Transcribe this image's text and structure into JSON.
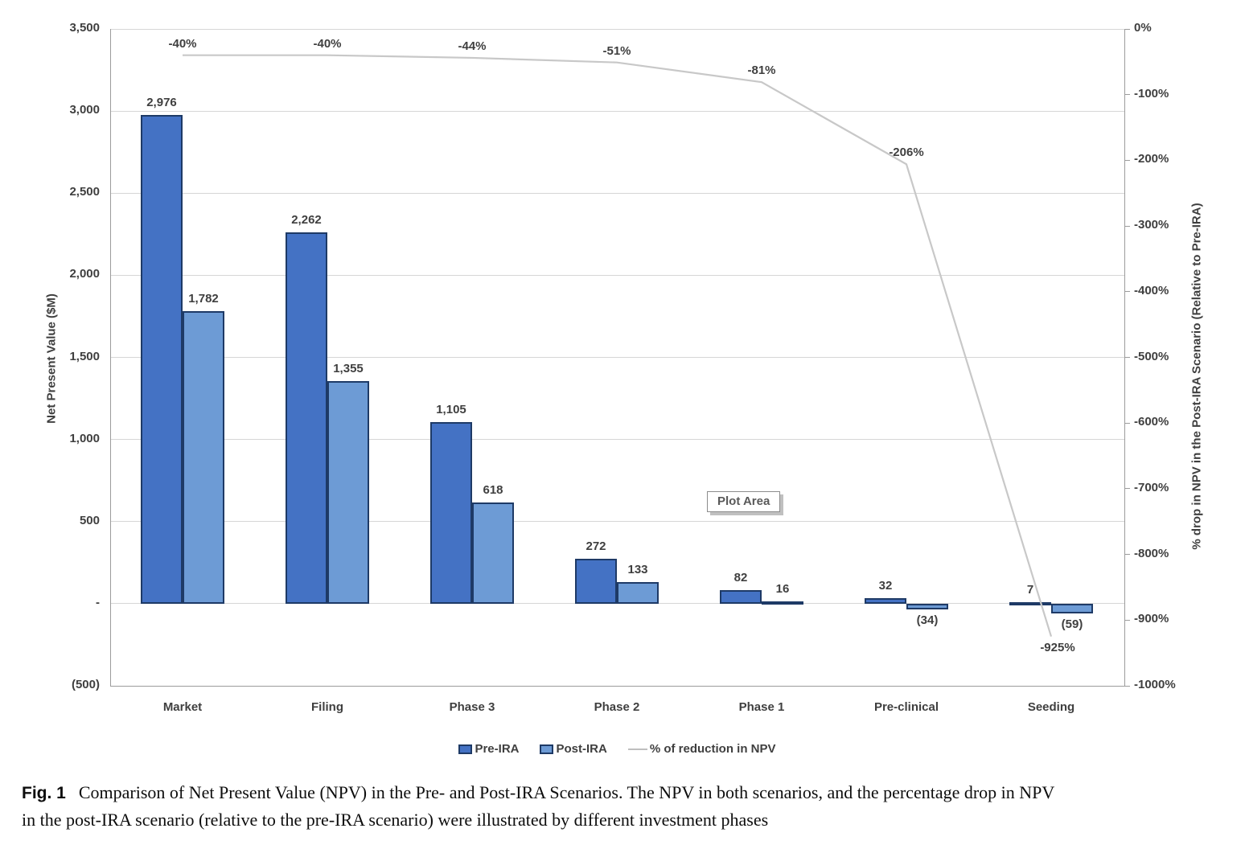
{
  "chart_data": {
    "type": "bar",
    "subtype": "combo-bar-line-secondary-axis",
    "title": "",
    "categories": [
      "Market",
      "Filing",
      "Phase 3",
      "Phase 2",
      "Phase 1",
      "Pre-clinical",
      "Seeding"
    ],
    "series": [
      {
        "name": "Pre-IRA",
        "type": "bar",
        "color": "#4472c4",
        "values": [
          2976,
          2262,
          1105,
          272,
          82,
          32,
          7
        ],
        "value_labels": [
          "2,976",
          "2,262",
          "1,105",
          "272",
          "82",
          "32",
          "7"
        ]
      },
      {
        "name": "Post-IRA",
        "type": "bar",
        "color": "#6d9bd5",
        "values": [
          1782,
          1355,
          618,
          133,
          16,
          -34,
          -59
        ],
        "value_labels": [
          "1,782",
          "1,355",
          "618",
          "133",
          "16",
          "(34)",
          "(59)"
        ]
      },
      {
        "name": "% of reduction in NPV",
        "type": "line",
        "axis": "right",
        "color": "#c8c8c8",
        "values": [
          -40,
          -40,
          -44,
          -51,
          -81,
          -206,
          -925
        ],
        "value_labels": [
          "-40%",
          "-40%",
          "-44%",
          "-51%",
          "-81%",
          "-206%",
          "-925%"
        ]
      }
    ],
    "left_axis": {
      "label": "Net Present Value ($M)",
      "min": -500,
      "max": 3500,
      "tick_step": 500,
      "tick_labels": [
        "3,500",
        "3,000",
        "2,500",
        "2,000",
        "1,500",
        "1,000",
        "500",
        "-",
        "(500)"
      ]
    },
    "right_axis": {
      "label": "% drop in NPV in the Post-IRA Scenario (Relative to Pre-IRA)",
      "min": -1000,
      "max": 0,
      "tick_step": 100,
      "tick_labels": [
        "0%",
        "-100%",
        "-200%",
        "-300%",
        "-400%",
        "-500%",
        "-600%",
        "-700%",
        "-800%",
        "-900%",
        "-1000%"
      ]
    },
    "grid": true,
    "legend_position": "bottom",
    "plot_area_tooltip": "Plot Area"
  },
  "caption": {
    "prefix": "Fig. 1",
    "line1": "Comparison of Net Present Value (NPV) in the Pre- and Post-IRA Scenarios. The NPV in both scenarios, and the percentage drop in NPV",
    "line2": "in the post-IRA scenario (relative to the pre-IRA scenario) were illustrated by different investment phases"
  }
}
